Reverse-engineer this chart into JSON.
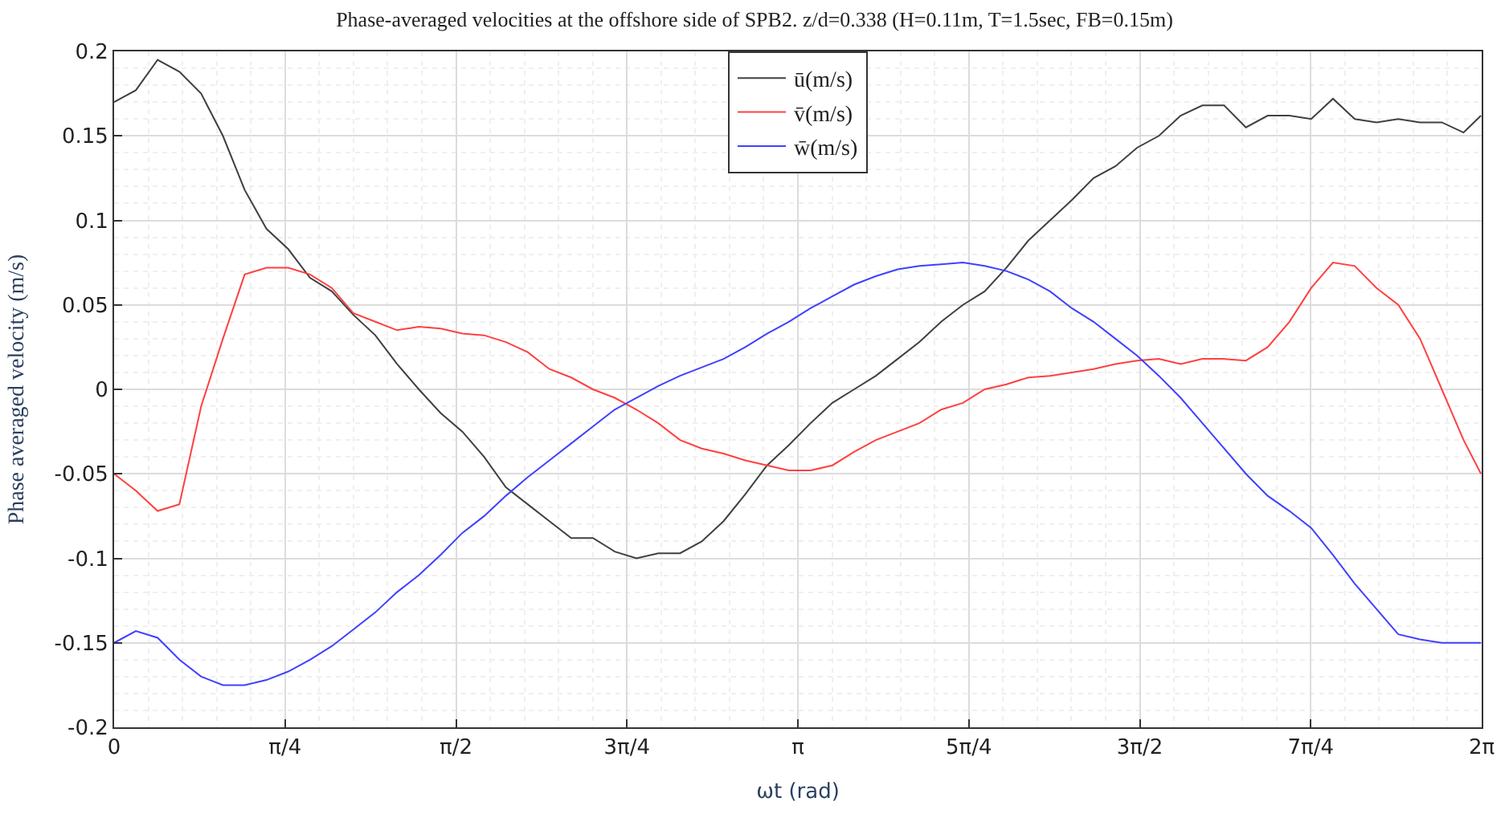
{
  "chart_data": {
    "type": "line",
    "title": "Phase-averaged velocities at the offshore side of SPB2. z/d=0.338 (H=0.11m, T=1.5sec, FB=0.15m)",
    "xlabel": "ωt (rad)",
    "ylabel": "Phase averaged velocity (m/s)",
    "x": [
      0,
      0.1,
      0.2,
      0.3,
      0.4,
      0.5,
      0.6,
      0.7,
      0.8,
      0.9,
      1.0,
      1.1,
      1.2,
      1.3,
      1.4,
      1.5,
      1.6,
      1.7,
      1.8,
      1.9,
      2.0,
      2.1,
      2.2,
      2.3,
      2.4,
      2.5,
      2.6,
      2.7,
      2.8,
      2.9,
      3.0,
      3.1,
      3.2,
      3.3,
      3.4,
      3.5,
      3.6,
      3.7,
      3.8,
      3.9,
      4.0,
      4.1,
      4.2,
      4.3,
      4.4,
      4.5,
      4.6,
      4.7,
      4.8,
      4.9,
      5.0,
      5.1,
      5.2,
      5.3,
      5.4,
      5.5,
      5.6,
      5.7,
      5.8,
      5.9,
      6.0,
      6.1,
      6.2,
      6.28
    ],
    "series": [
      {
        "name": "ū(m/s)",
        "color": "#404040",
        "values": [
          0.17,
          0.177,
          0.195,
          0.188,
          0.175,
          0.15,
          0.118,
          0.095,
          0.083,
          0.066,
          0.058,
          0.044,
          0.032,
          0.015,
          0.0,
          -0.014,
          -0.025,
          -0.04,
          -0.058,
          -0.068,
          -0.078,
          -0.088,
          -0.088,
          -0.096,
          -0.1,
          -0.097,
          -0.097,
          -0.09,
          -0.078,
          -0.062,
          -0.045,
          -0.033,
          -0.02,
          -0.008,
          0.0,
          0.008,
          0.018,
          0.028,
          0.04,
          0.05,
          0.058,
          0.072,
          0.088,
          0.1,
          0.112,
          0.125,
          0.132,
          0.143,
          0.15,
          0.162,
          0.168,
          0.168,
          0.155,
          0.162,
          0.162,
          0.16,
          0.172,
          0.16,
          0.158,
          0.16,
          0.158,
          0.158,
          0.152,
          0.162
        ]
      },
      {
        "name": "v̄(m/s)",
        "color": "#ff4040",
        "values": [
          -0.05,
          -0.06,
          -0.072,
          -0.068,
          -0.01,
          0.03,
          0.068,
          0.072,
          0.072,
          0.068,
          0.06,
          0.045,
          0.04,
          0.035,
          0.037,
          0.036,
          0.033,
          0.032,
          0.028,
          0.022,
          0.012,
          0.007,
          0.0,
          -0.005,
          -0.012,
          -0.02,
          -0.03,
          -0.035,
          -0.038,
          -0.042,
          -0.045,
          -0.048,
          -0.048,
          -0.045,
          -0.037,
          -0.03,
          -0.025,
          -0.02,
          -0.012,
          -0.008,
          0.0,
          0.003,
          0.007,
          0.008,
          0.01,
          0.012,
          0.015,
          0.017,
          0.018,
          0.015,
          0.018,
          0.018,
          0.017,
          0.025,
          0.04,
          0.06,
          0.075,
          0.073,
          0.06,
          0.05,
          0.03,
          0.0,
          -0.03,
          -0.05
        ]
      },
      {
        "name": "w̄(m/s)",
        "color": "#4040ff",
        "values": [
          -0.15,
          -0.143,
          -0.147,
          -0.16,
          -0.17,
          -0.175,
          -0.175,
          -0.172,
          -0.167,
          -0.16,
          -0.152,
          -0.142,
          -0.132,
          -0.12,
          -0.11,
          -0.098,
          -0.085,
          -0.075,
          -0.063,
          -0.052,
          -0.042,
          -0.032,
          -0.022,
          -0.012,
          -0.005,
          0.002,
          0.008,
          0.013,
          0.018,
          0.025,
          0.033,
          0.04,
          0.048,
          0.055,
          0.062,
          0.067,
          0.071,
          0.073,
          0.074,
          0.075,
          0.073,
          0.07,
          0.065,
          0.058,
          0.048,
          0.04,
          0.03,
          0.02,
          0.008,
          -0.005,
          -0.02,
          -0.035,
          -0.05,
          -0.063,
          -0.072,
          -0.082,
          -0.098,
          -0.115,
          -0.13,
          -0.145,
          -0.148,
          -0.15,
          -0.15,
          -0.15
        ]
      }
    ],
    "xlim": [
      0,
      6.2832
    ],
    "xticks": [
      0,
      {
        "value": 0.7854,
        "label": "π/4"
      },
      {
        "value": 1.5708,
        "label": "π/2"
      },
      {
        "value": 2.3562,
        "label": "3π/4"
      },
      {
        "value": 3.1416,
        "label": "π"
      },
      {
        "value": 3.927,
        "label": "5π/4"
      },
      {
        "value": 4.7124,
        "label": "3π/2"
      },
      {
        "value": 5.4978,
        "label": "7π/4"
      },
      {
        "value": 6.2832,
        "label": "2π"
      }
    ],
    "ylim": [
      -0.2,
      0.2
    ],
    "yticks": [
      -0.2,
      -0.15,
      -0.1,
      -0.05,
      0,
      0.05,
      0.1,
      0.15,
      0.2
    ],
    "grid": true,
    "legend": "top",
    "marker": "none",
    "line_style": "solid"
  }
}
